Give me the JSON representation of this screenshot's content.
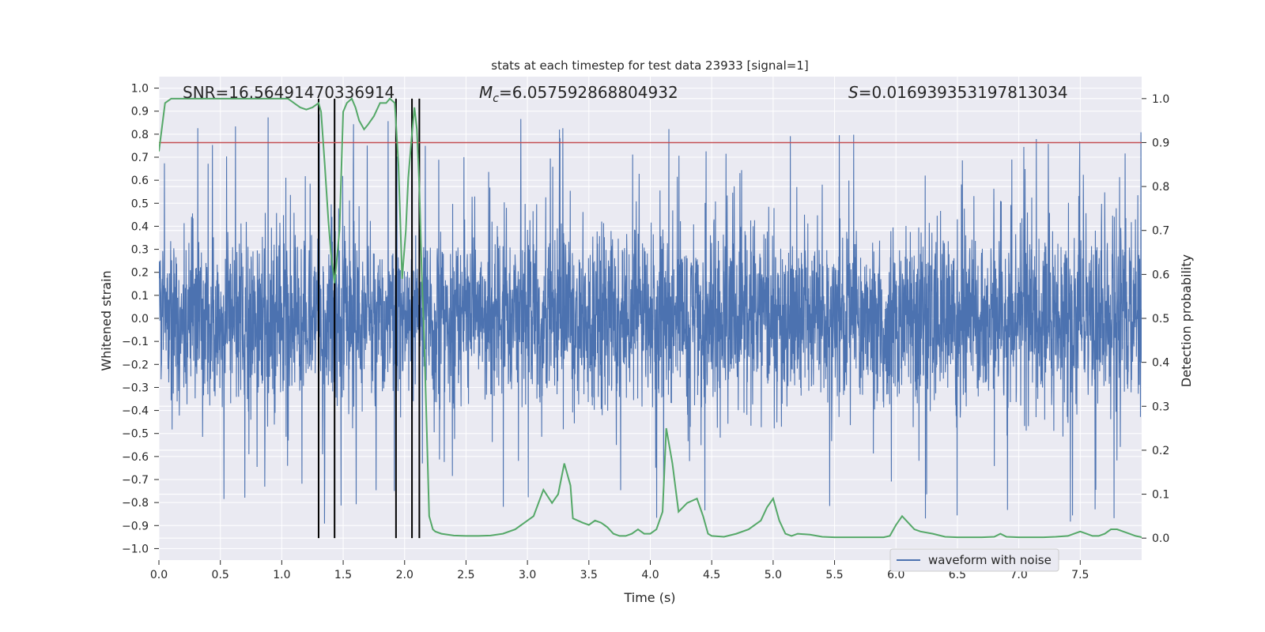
{
  "chart_data": {
    "type": "line",
    "title": "stats at each timestep for test data 23933 [signal=1]",
    "xlabel": "Time (s)",
    "ylabel_left": "Whitened strain",
    "ylabel_right": "Detection probability",
    "xlim": [
      0.0,
      8.0
    ],
    "ylim_left": [
      -1.05,
      1.05
    ],
    "ylim_right": [
      -0.05,
      1.05
    ],
    "x_ticks": [
      "0.0",
      "0.5",
      "1.0",
      "1.5",
      "2.0",
      "2.5",
      "3.0",
      "3.5",
      "4.0",
      "4.5",
      "5.0",
      "5.5",
      "6.0",
      "6.5",
      "7.0",
      "7.5"
    ],
    "x_tick_values": [
      0,
      0.5,
      1,
      1.5,
      2,
      2.5,
      3,
      3.5,
      4,
      4.5,
      5,
      5.5,
      6,
      6.5,
      7,
      7.5
    ],
    "y_left_ticks": [
      "1.0",
      "0.9",
      "0.8",
      "0.7",
      "0.6",
      "0.5",
      "0.4",
      "0.3",
      "0.2",
      "0.1",
      "0.0",
      "−0.1",
      "−0.2",
      "−0.3",
      "−0.4",
      "−0.5",
      "−0.6",
      "−0.7",
      "−0.8",
      "−0.9",
      "−1.0"
    ],
    "y_left_tick_values": [
      1.0,
      0.9,
      0.8,
      0.7,
      0.6,
      0.5,
      0.4,
      0.3,
      0.2,
      0.1,
      0.0,
      -0.1,
      -0.2,
      -0.3,
      -0.4,
      -0.5,
      -0.6,
      -0.7,
      -0.8,
      -0.9,
      -1.0
    ],
    "y_right_ticks": [
      "1.0",
      "0.9",
      "0.8",
      "0.7",
      "0.6",
      "0.5",
      "0.4",
      "0.3",
      "0.2",
      "0.1",
      "0.0"
    ],
    "y_right_tick_values": [
      1.0,
      0.9,
      0.8,
      0.7,
      0.6,
      0.5,
      0.4,
      0.3,
      0.2,
      0.1,
      0.0
    ],
    "annotations": {
      "snr": "SNR=16.56491470336914",
      "mc_symbol": "M",
      "mc_sub": "c",
      "mc_value": "=6.057592868804932",
      "s_symbol": "S",
      "s_value": "=0.016939353197813034"
    },
    "legend": {
      "label": "waveform with noise",
      "placement": "lower-right"
    },
    "threshold": {
      "value": 0.9,
      "axis": "right",
      "color": "#c44e52"
    },
    "event_markers_x": [
      1.3,
      1.43,
      1.93,
      2.06,
      2.12
    ],
    "noise_waveform": {
      "name": "waveform with noise",
      "color": "#4c72b0",
      "samples": 4096,
      "x_range": [
        0.0,
        8.0
      ],
      "typical_amplitude": 0.4,
      "max": 1.0,
      "min": -0.93
    },
    "detection_probability": {
      "name": "detection probability",
      "color": "#55a868",
      "x": [
        0.0,
        0.05,
        0.1,
        0.2,
        0.4,
        0.6,
        0.8,
        1.0,
        1.05,
        1.1,
        1.15,
        1.2,
        1.25,
        1.3,
        1.32,
        1.35,
        1.38,
        1.4,
        1.43,
        1.47,
        1.5,
        1.53,
        1.57,
        1.6,
        1.63,
        1.67,
        1.7,
        1.75,
        1.8,
        1.85,
        1.88,
        1.92,
        1.95,
        1.98,
        2.01,
        2.03,
        2.06,
        2.08,
        2.1,
        2.12,
        2.14,
        2.16,
        2.18,
        2.2,
        2.23,
        2.25,
        2.3,
        2.35,
        2.4,
        2.5,
        2.6,
        2.7,
        2.8,
        2.9,
        3.0,
        3.05,
        3.13,
        3.2,
        3.25,
        3.3,
        3.35,
        3.37,
        3.45,
        3.5,
        3.55,
        3.6,
        3.65,
        3.7,
        3.75,
        3.8,
        3.85,
        3.9,
        3.95,
        4.0,
        4.05,
        4.1,
        4.13,
        4.18,
        4.23,
        4.3,
        4.38,
        4.43,
        4.47,
        4.5,
        4.6,
        4.7,
        4.8,
        4.9,
        4.95,
        5.0,
        5.05,
        5.1,
        5.15,
        5.2,
        5.3,
        5.4,
        5.5,
        5.6,
        5.7,
        5.8,
        5.9,
        5.95,
        6.0,
        6.05,
        6.1,
        6.15,
        6.2,
        6.3,
        6.4,
        6.5,
        6.6,
        6.7,
        6.8,
        6.85,
        6.9,
        7.0,
        7.1,
        7.2,
        7.3,
        7.4,
        7.45,
        7.5,
        7.55,
        7.6,
        7.65,
        7.7,
        7.75,
        7.8,
        7.85,
        7.9,
        7.95,
        8.0
      ],
      "y": [
        0.88,
        0.99,
        1.0,
        1.0,
        1.0,
        1.0,
        1.0,
        1.0,
        1.0,
        0.99,
        0.98,
        0.975,
        0.98,
        0.99,
        0.97,
        0.85,
        0.72,
        0.65,
        0.58,
        0.7,
        0.97,
        0.99,
        1.0,
        0.98,
        0.95,
        0.93,
        0.94,
        0.96,
        0.99,
        0.99,
        1.0,
        0.99,
        0.85,
        0.59,
        0.7,
        0.82,
        0.92,
        0.98,
        0.93,
        0.8,
        0.6,
        0.45,
        0.25,
        0.05,
        0.02,
        0.015,
        0.01,
        0.008,
        0.006,
        0.005,
        0.005,
        0.006,
        0.01,
        0.02,
        0.04,
        0.05,
        0.11,
        0.08,
        0.1,
        0.17,
        0.12,
        0.045,
        0.035,
        0.03,
        0.04,
        0.035,
        0.025,
        0.01,
        0.005,
        0.005,
        0.01,
        0.02,
        0.01,
        0.01,
        0.02,
        0.06,
        0.25,
        0.17,
        0.06,
        0.08,
        0.09,
        0.05,
        0.01,
        0.005,
        0.003,
        0.01,
        0.02,
        0.04,
        0.07,
        0.09,
        0.04,
        0.01,
        0.005,
        0.01,
        0.008,
        0.003,
        0.002,
        0.002,
        0.002,
        0.002,
        0.002,
        0.005,
        0.03,
        0.05,
        0.035,
        0.02,
        0.015,
        0.01,
        0.003,
        0.002,
        0.002,
        0.002,
        0.003,
        0.01,
        0.003,
        0.002,
        0.002,
        0.002,
        0.003,
        0.005,
        0.01,
        0.015,
        0.01,
        0.005,
        0.005,
        0.01,
        0.02,
        0.02,
        0.015,
        0.01,
        0.005,
        0.002
      ]
    }
  }
}
